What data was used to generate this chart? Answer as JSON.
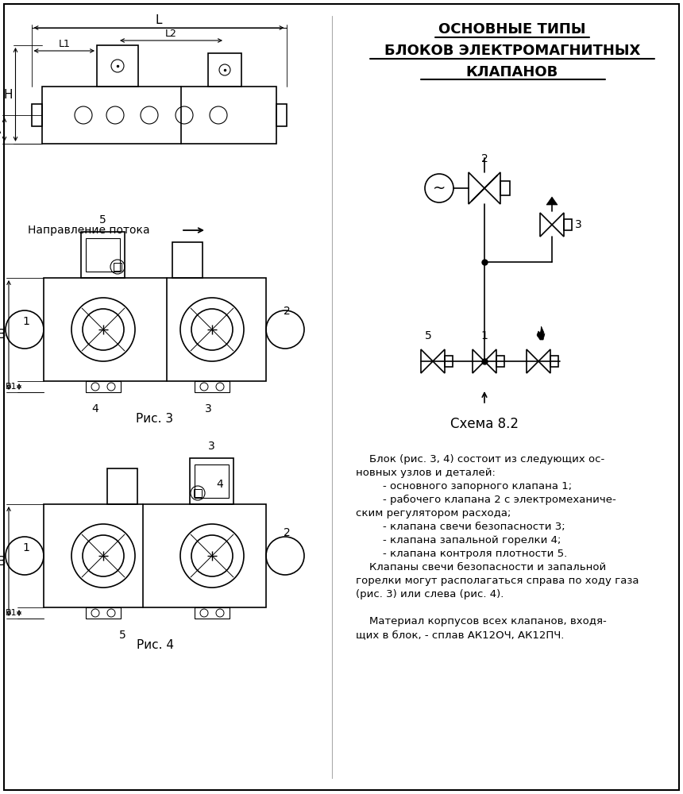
{
  "title_line1": "ОСНОВНЫЕ ТИПЫ",
  "title_line2": "БЛОКОВ ЭЛЕКТРОМАГНИТНЫХ",
  "title_line3": "КЛАПАНОВ",
  "schema_label": "Схема 8.2",
  "flow_direction": "Направление потока",
  "fig3_label": "Рис. 3",
  "fig4_label": "Рис. 4",
  "text_block": [
    "    Блок (рис. 3, 4) состоит из следующих ос-",
    "новных узлов и деталей:",
    "        - основного запорного клапана 1;",
    "        - рабочего клапана 2 с электромеханиче-",
    "ским регулятором расхода;",
    "        - клапана свечи безопасности 3;",
    "        - клапана запальной горелки 4;",
    "        - клапана контроля плотности 5.",
    "    Клапаны свечи безопасности и запальной",
    "горелки могут располагаться справа по ходу газа",
    "(рис. 3) или слева (рис. 4).",
    "",
    "    Материал корпусов всех клапанов, входя-",
    "щих в блок, - сплав АК12ОЧ, АК12ПЧ."
  ],
  "bg_color": "#ffffff",
  "line_color": "#000000"
}
